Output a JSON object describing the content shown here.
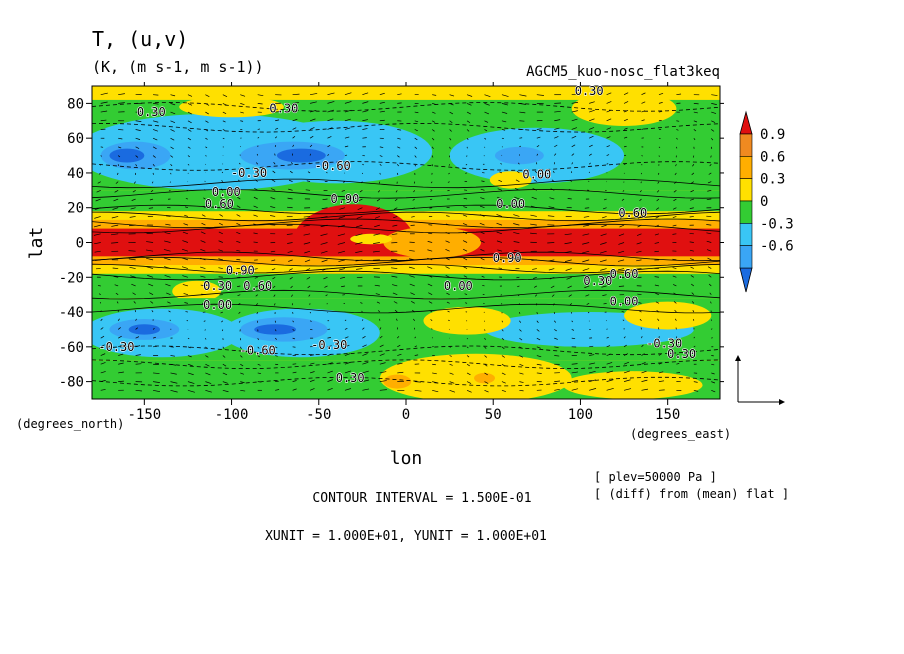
{
  "chart_data": {
    "type": "heatmap",
    "title": "T, (u,v)",
    "subtitle": "(K, (m s-1, m s-1))",
    "run_label": "AGCM5_kuo-nosc_flat3keq",
    "xlabel": "lon",
    "ylabel": "lat",
    "x_unit_label": "(degrees_east)",
    "y_unit_label": "(degrees_north)",
    "xlim": [
      -180,
      180
    ],
    "ylim": [
      -90,
      90
    ],
    "x_ticks": [
      -150,
      -100,
      -50,
      0,
      50,
      100,
      150
    ],
    "x_tick_labels": [
      "-150",
      "-100",
      "-50",
      "0",
      "50",
      "100",
      "150"
    ],
    "y_ticks": [
      -80,
      -60,
      -40,
      -20,
      0,
      20,
      40,
      60,
      80
    ],
    "y_tick_labels": [
      "-80",
      "-60",
      "-40",
      "-20",
      "0",
      "20",
      "40",
      "60",
      "80"
    ],
    "colorbar": {
      "levels": [
        -0.75,
        -0.6,
        -0.45,
        -0.3,
        -0.15,
        0,
        0.15,
        0.3,
        0.45,
        0.6,
        0.75,
        0.9,
        1.05
      ],
      "labels": [
        "0.9",
        "0.6",
        "0.3",
        "0",
        "-0.3",
        "-0.6"
      ],
      "label_values": [
        0.9,
        0.6,
        0.3,
        0,
        -0.3,
        -0.6
      ],
      "colors": [
        "#1a6be0",
        "#2a8cf0",
        "#3aa6f5",
        "#39c6f5",
        "#1fc35a",
        "#33cc33",
        "#ffd400",
        "#ffe000",
        "#ffae00",
        "#f08a20",
        "#e01010",
        "#e01010"
      ]
    },
    "contour_labels": [
      {
        "text": "0.30",
        "lon": -146,
        "lat": 75
      },
      {
        "text": "0.30",
        "lon": -70,
        "lat": 77
      },
      {
        "text": "0.30",
        "lon": 105,
        "lat": 87
      },
      {
        "text": "-0.30",
        "lon": -90,
        "lat": 40
      },
      {
        "text": "-0.60",
        "lon": -42,
        "lat": 44
      },
      {
        "text": "0.00",
        "lon": -103,
        "lat": 29
      },
      {
        "text": "0.60",
        "lon": -107,
        "lat": 22
      },
      {
        "text": "0.90",
        "lon": -35,
        "lat": 25
      },
      {
        "text": "0.00",
        "lon": 75,
        "lat": 39
      },
      {
        "text": "0.00",
        "lon": 60,
        "lat": 22
      },
      {
        "text": "0.60",
        "lon": 130,
        "lat": 17
      },
      {
        "text": "0.90",
        "lon": 58,
        "lat": -9
      },
      {
        "text": "0.90",
        "lon": -95,
        "lat": -16
      },
      {
        "text": "0.30",
        "lon": -108,
        "lat": -25
      },
      {
        "text": "0.60",
        "lon": -85,
        "lat": -25
      },
      {
        "text": "0.00",
        "lon": 30,
        "lat": -25
      },
      {
        "text": "0.30",
        "lon": 110,
        "lat": -22
      },
      {
        "text": "0.60",
        "lon": 125,
        "lat": -18
      },
      {
        "text": "0.00",
        "lon": -108,
        "lat": -36
      },
      {
        "text": "0.00",
        "lon": 125,
        "lat": -34
      },
      {
        "text": "-0.30",
        "lon": -166,
        "lat": -60
      },
      {
        "text": "-0.30",
        "lon": -44,
        "lat": -59
      },
      {
        "text": "-0.60",
        "lon": -85,
        "lat": -62
      },
      {
        "text": "0.30",
        "lon": -32,
        "lat": -78
      },
      {
        "text": "-0.30",
        "lon": 148,
        "lat": -58
      },
      {
        "text": "0.30",
        "lon": 158,
        "lat": -64
      }
    ]
  },
  "footer": {
    "contour_interval": "CONTOUR INTERVAL = 1.500E-01",
    "units": "XUNIT = 1.000E+01, YUNIT = 1.000E+01",
    "plev": "[ plev=50000 Pa ]",
    "diff": "[ (diff) from (mean) flat ]"
  }
}
